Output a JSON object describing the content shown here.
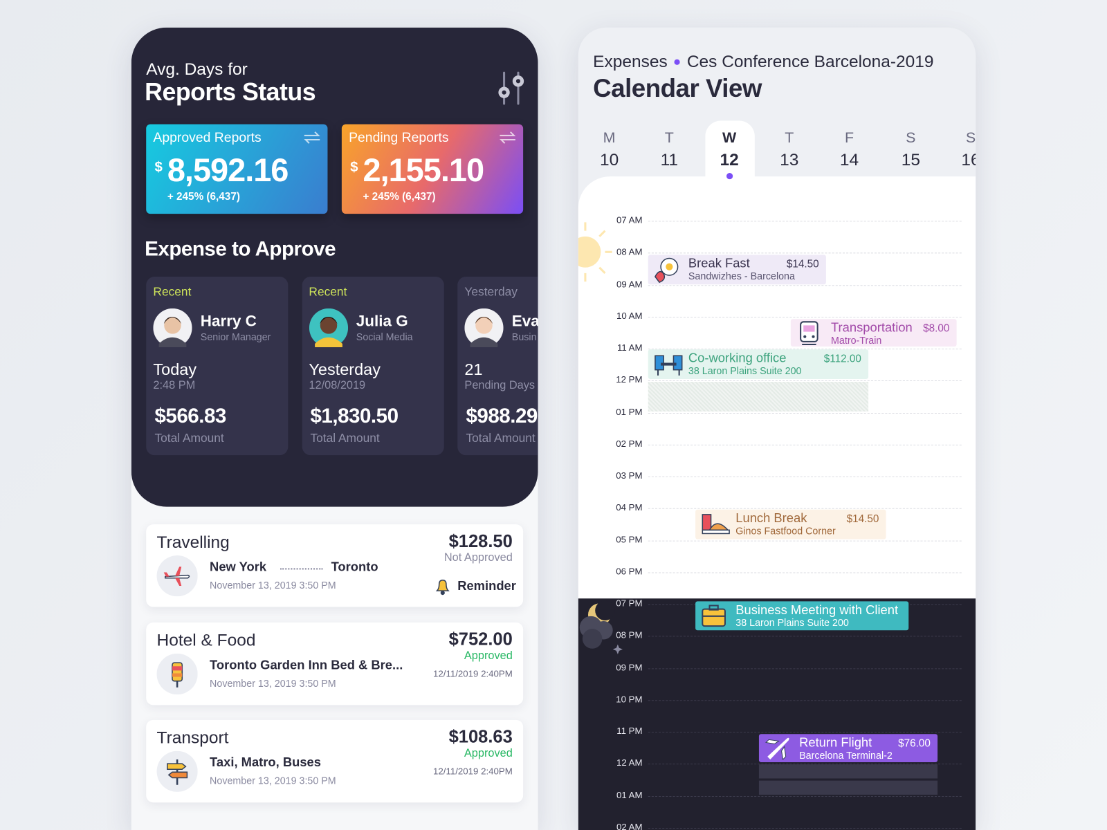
{
  "left": {
    "header": {
      "subtitle": "Avg. Days for",
      "title": "Reports Status"
    },
    "summary_cards": [
      {
        "label": "Approved Reports",
        "currency": "$",
        "amount": "8,592.16",
        "change": "+ 245% (6,437)"
      },
      {
        "label": "Pending Reports",
        "currency": "$",
        "amount": "2,155.10",
        "change": "+ 245% (6,437)"
      }
    ],
    "section_title": "Expense to Approve",
    "approvals": [
      {
        "tag": "Recent",
        "name": "Harry C",
        "role": "Senior Manager",
        "when": "Today",
        "detail": "2:48 PM",
        "amount": "$566.83",
        "amount_label": "Total Amount"
      },
      {
        "tag": "Recent",
        "name": "Julia G",
        "role": "Social Media",
        "when": "Yesterday",
        "detail": "12/08/2019",
        "amount": "$1,830.50",
        "amount_label": "Total Amount"
      },
      {
        "tag": "Yesterday",
        "name": "Eva",
        "role": "Busin",
        "when": "21",
        "detail": "Pending Days",
        "amount": "$988.29",
        "amount_label": "Total Amount"
      }
    ],
    "expenses": [
      {
        "category": "Travelling",
        "from": "New York",
        "to": "Toronto",
        "date": "November 13, 2019 3:50 PM",
        "amount": "$128.50",
        "status": "Not Approved",
        "action": "Reminder"
      },
      {
        "category": "Hotel & Food",
        "place": "Toronto Garden Inn Bed & Bre...",
        "date": "November 13, 2019 3:50 PM",
        "amount": "$752.00",
        "status": "Approved",
        "status_date": "12/11/2019 2:40PM"
      },
      {
        "category": "Transport",
        "place": "Taxi, Matro, Buses",
        "date": "November 13, 2019 3:50 PM",
        "amount": "$108.63",
        "status": "Approved",
        "status_date": "12/11/2019 2:40PM"
      }
    ]
  },
  "right": {
    "breadcrumb": "Expenses",
    "event_name": "Ces Conference Barcelona-2019",
    "title": "Calendar View",
    "days": [
      {
        "letter": "M",
        "date": "10"
      },
      {
        "letter": "T",
        "date": "11"
      },
      {
        "letter": "W",
        "date": "12"
      },
      {
        "letter": "T",
        "date": "13"
      },
      {
        "letter": "F",
        "date": "14"
      },
      {
        "letter": "S",
        "date": "15"
      },
      {
        "letter": "S",
        "date": "16"
      }
    ],
    "hours": [
      "07 AM",
      "08 AM",
      "09 AM",
      "10 AM",
      "11 AM",
      "12 PM",
      "01 PM",
      "02 PM",
      "03 PM",
      "04 PM",
      "05 PM",
      "06 PM",
      "07 PM",
      "08 PM",
      "09 PM",
      "10 PM",
      "11 PM",
      "12 AM",
      "01 AM",
      "02 AM"
    ],
    "events": [
      {
        "title": "Break Fast",
        "subtitle": "Sandwizhes - Barcelona",
        "amount": "$14.50"
      },
      {
        "title": "Transportation",
        "subtitle": "Matro-Train",
        "amount": "$8.00"
      },
      {
        "title": "Co-working office",
        "subtitle": "38 Laron Plains Suite 200",
        "amount": "$112.00"
      },
      {
        "title": "Lunch Break",
        "subtitle": "Ginos Fastfood Corner",
        "amount": "$14.50"
      },
      {
        "title": "Business Meeting with Client",
        "subtitle": "38 Laron Plains Suite 200"
      },
      {
        "title": "Return Flight",
        "subtitle": "Barcelona Terminal-2",
        "amount": "$76.00"
      }
    ]
  }
}
